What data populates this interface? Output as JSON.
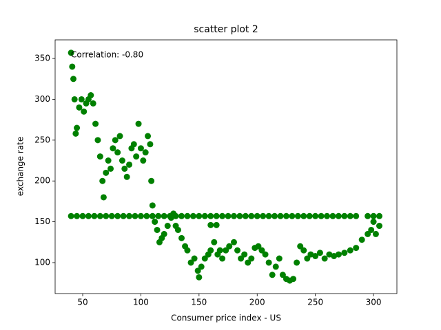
{
  "chart_data": {
    "type": "scatter",
    "title": "scatter plot 2",
    "x_label": "Consumer price index - US",
    "y_label": "exchange rate",
    "annotation": "Correlation: -0.80",
    "color": "#008000",
    "x": [
      40,
      45,
      50,
      55,
      60,
      65,
      70,
      75,
      80,
      85,
      90,
      95,
      100,
      105,
      110,
      115,
      120,
      125,
      130,
      135,
      140,
      145,
      150,
      155,
      160,
      165,
      170,
      175,
      180,
      185,
      190,
      195,
      200,
      205,
      210,
      215,
      220,
      225,
      230,
      235,
      240,
      245,
      250,
      255,
      260,
      265,
      270,
      275,
      280,
      285,
      295,
      300,
      305,
      40,
      41,
      42,
      43,
      44,
      45,
      47,
      49,
      51,
      53,
      55,
      57,
      59,
      61,
      63,
      65,
      67,
      68,
      70,
      72,
      74,
      76,
      78,
      80,
      82,
      84,
      86,
      88,
      90,
      92,
      94,
      96,
      98,
      100,
      102,
      104,
      106,
      108,
      109,
      110,
      112,
      114,
      116,
      118,
      120,
      123,
      126,
      128,
      130,
      132,
      135,
      138,
      140,
      143,
      146,
      149,
      150,
      152,
      155,
      158,
      160,
      163,
      166,
      168,
      170,
      173,
      176,
      180,
      183,
      186,
      189,
      192,
      195,
      198,
      201,
      204,
      207,
      210,
      213,
      216,
      219,
      222,
      225,
      228,
      231,
      234,
      237,
      240,
      243,
      246,
      250,
      254,
      258,
      262,
      266,
      270,
      275,
      280,
      285,
      290,
      295,
      298,
      300,
      302,
      305,
      160,
      165
    ],
    "values": [
      157,
      157,
      157,
      157,
      157,
      157,
      157,
      157,
      157,
      157,
      157,
      157,
      157,
      157,
      157,
      157,
      157,
      157,
      157,
      157,
      157,
      157,
      157,
      157,
      157,
      157,
      157,
      157,
      157,
      157,
      157,
      157,
      157,
      157,
      157,
      157,
      157,
      157,
      157,
      157,
      157,
      157,
      157,
      157,
      157,
      157,
      157,
      157,
      157,
      157,
      157,
      157,
      157,
      357,
      340,
      325,
      300,
      258,
      265,
      290,
      300,
      285,
      295,
      300,
      305,
      295,
      270,
      250,
      230,
      200,
      180,
      210,
      225,
      215,
      240,
      250,
      235,
      255,
      225,
      215,
      205,
      220,
      240,
      245,
      230,
      270,
      240,
      225,
      235,
      255,
      245,
      200,
      170,
      150,
      140,
      125,
      130,
      135,
      145,
      155,
      160,
      145,
      140,
      130,
      120,
      115,
      100,
      105,
      90,
      82,
      95,
      105,
      110,
      115,
      125,
      110,
      115,
      105,
      115,
      120,
      125,
      115,
      105,
      110,
      100,
      105,
      118,
      120,
      115,
      110,
      100,
      85,
      95,
      105,
      85,
      80,
      78,
      80,
      100,
      120,
      115,
      105,
      110,
      108,
      112,
      105,
      110,
      108,
      110,
      112,
      115,
      118,
      128,
      135,
      140,
      150,
      135,
      145,
      146,
      146
    ],
    "xlim": [
      26.3,
      320.1
    ],
    "ylim": [
      62.1,
      372.8
    ],
    "xticks": [
      50,
      100,
      150,
      200,
      250,
      300
    ],
    "yticks": [
      100,
      150,
      200,
      250,
      300,
      350
    ]
  }
}
